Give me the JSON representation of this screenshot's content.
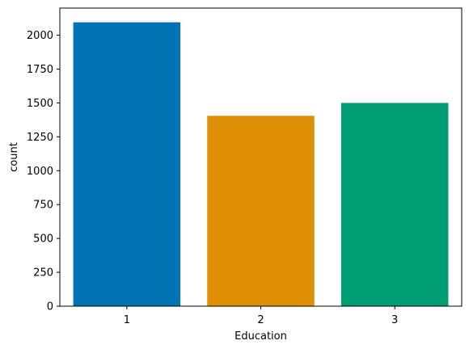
{
  "chart_data": {
    "type": "bar",
    "categories": [
      "1",
      "2",
      "3"
    ],
    "values": [
      2095,
      1405,
      1500
    ],
    "colors": [
      "#0173b2",
      "#de8f05",
      "#029e73"
    ],
    "title": "",
    "xlabel": "Education",
    "ylabel": "count",
    "ylim": [
      0,
      2200
    ],
    "yticks": [
      0,
      250,
      500,
      750,
      1000,
      1250,
      1500,
      1750,
      2000
    ],
    "grid": false,
    "legend": null
  }
}
